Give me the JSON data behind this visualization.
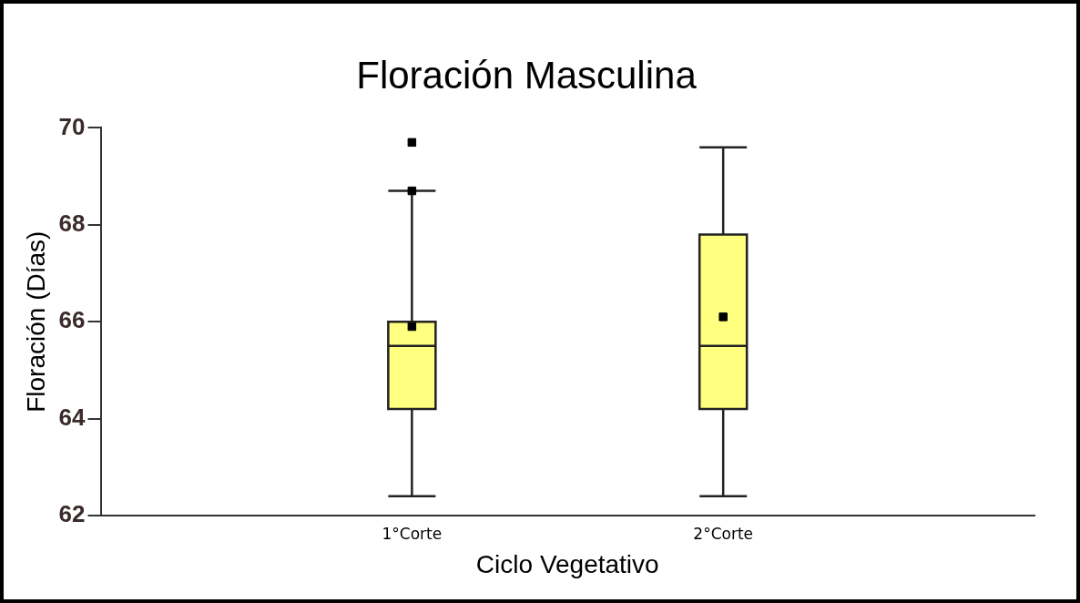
{
  "chart_data": {
    "type": "box",
    "title": "Floración Masculina",
    "xlabel": "Ciclo Vegetativo",
    "ylabel": "Floración (Días)",
    "categories": [
      "1°Corte",
      "2°Corte"
    ],
    "color": "#ffff80",
    "boxes": [
      {
        "low": 62.4,
        "q1": 64.2,
        "median": 65.5,
        "q3": 66.0,
        "high": 68.7,
        "mean": 65.9,
        "outliers": [
          69.7,
          68.7
        ]
      },
      {
        "low": 62.4,
        "q1": 64.2,
        "median": 65.5,
        "q3": 67.8,
        "high": 69.6,
        "mean": 66.1
      }
    ],
    "ylim": [
      62,
      70
    ],
    "yticks": [
      62,
      64,
      66,
      68,
      70
    ],
    "grid": false,
    "legend": false
  }
}
